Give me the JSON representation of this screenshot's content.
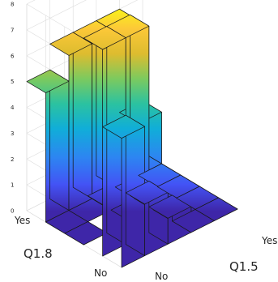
{
  "chart_data": {
    "type": "bar3",
    "title": "",
    "xlabel": "Q1.5",
    "ylabel": "Q1.8",
    "x_categories": [
      "No",
      "Yes"
    ],
    "y_categories": [
      "Yes",
      "No"
    ],
    "zlim": [
      0,
      8
    ],
    "z_ticks": [
      0,
      1,
      2,
      3,
      4,
      5,
      6,
      7,
      8
    ],
    "grid": true,
    "colormap": "parula",
    "grid_rows": 5,
    "grid_cols": 5,
    "values": [
      [
        5,
        6,
        6,
        6,
        2
      ],
      [
        0,
        0,
        0,
        0,
        0
      ],
      [
        0,
        1,
        0,
        0,
        0
      ],
      [
        8,
        8,
        1,
        0,
        0
      ],
      [
        5,
        2,
        1,
        0,
        0
      ]
    ]
  }
}
